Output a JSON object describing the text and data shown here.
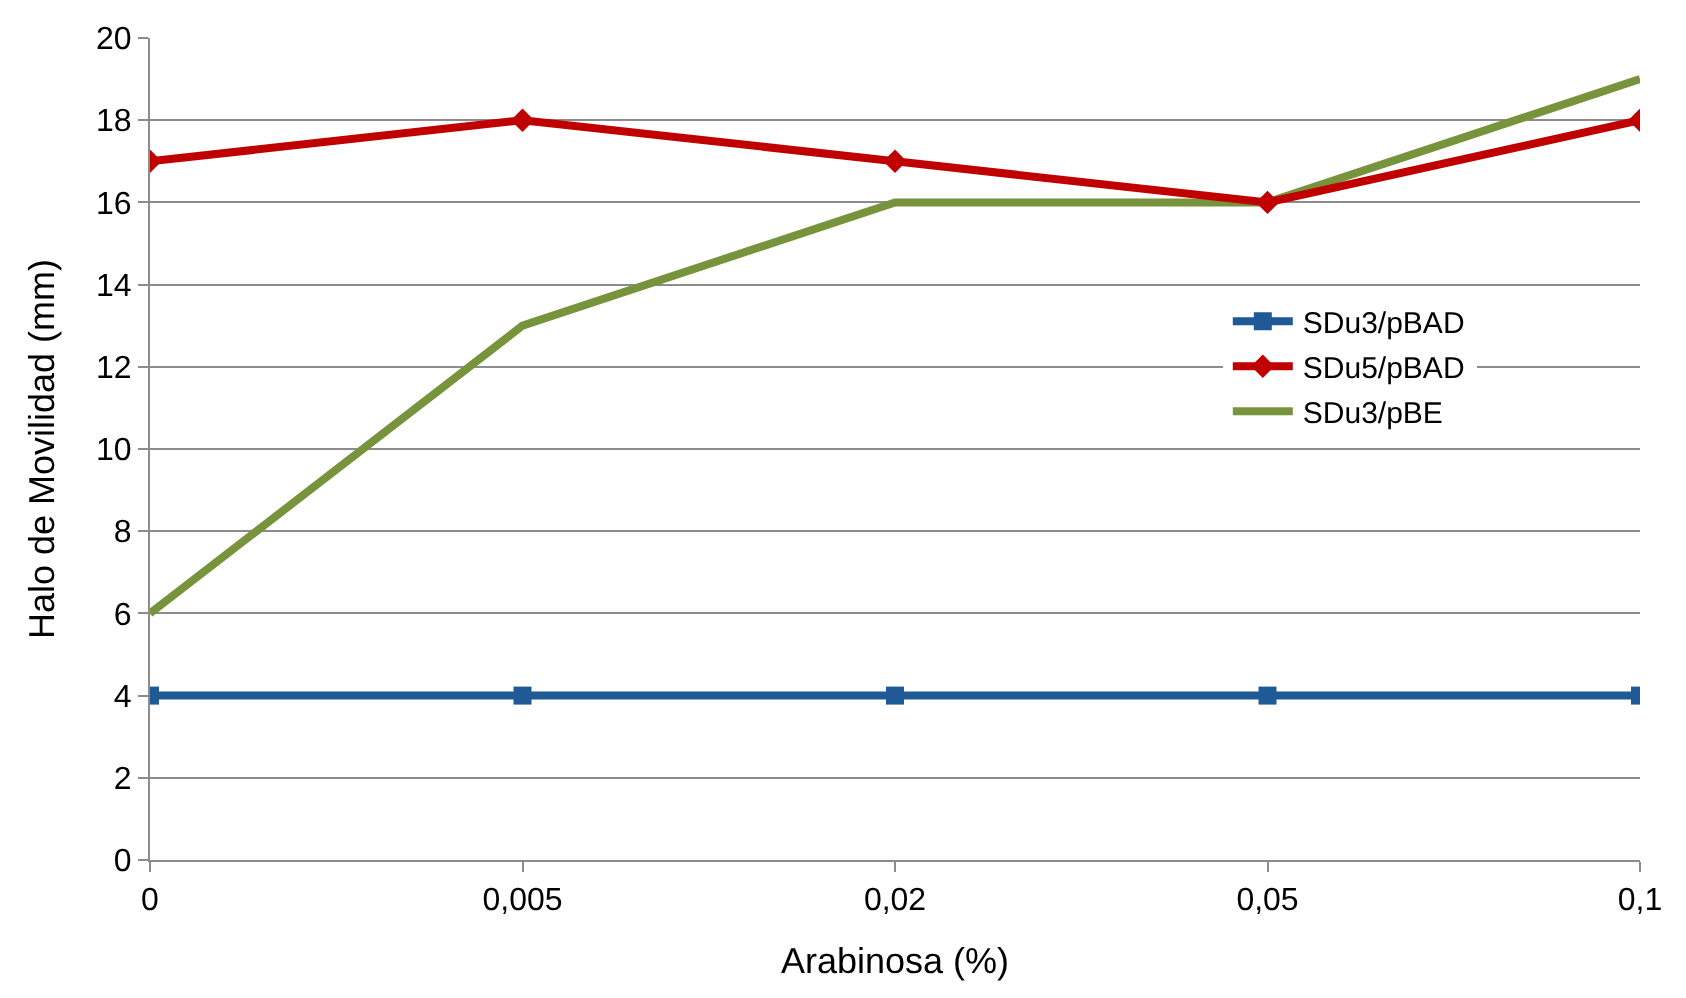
{
  "chart_data": {
    "type": "line",
    "xlabel": "Arabinosa (%)",
    "ylabel": "Halo de Movilidad (mm)",
    "categories": [
      "0",
      "0,005",
      "0,02",
      "0,05",
      "0,1"
    ],
    "ylim": [
      0,
      20
    ],
    "yticks": [
      0,
      2,
      4,
      6,
      8,
      10,
      12,
      14,
      16,
      18,
      20
    ],
    "grid": "y",
    "legend": "right",
    "line_style": "solid",
    "series": [
      {
        "name": "SDu3/pBAD",
        "color": "#1f5a96",
        "marker": "square",
        "values": [
          4,
          4,
          4,
          4,
          4
        ]
      },
      {
        "name": "SDu5/pBAD",
        "color": "#c00000",
        "marker": "diamond",
        "values": [
          17,
          18,
          17,
          16,
          18
        ]
      },
      {
        "name": "SDu3/pBE",
        "color": "#77933c",
        "marker": "none",
        "values": [
          6,
          13,
          16,
          16,
          19
        ]
      }
    ]
  }
}
